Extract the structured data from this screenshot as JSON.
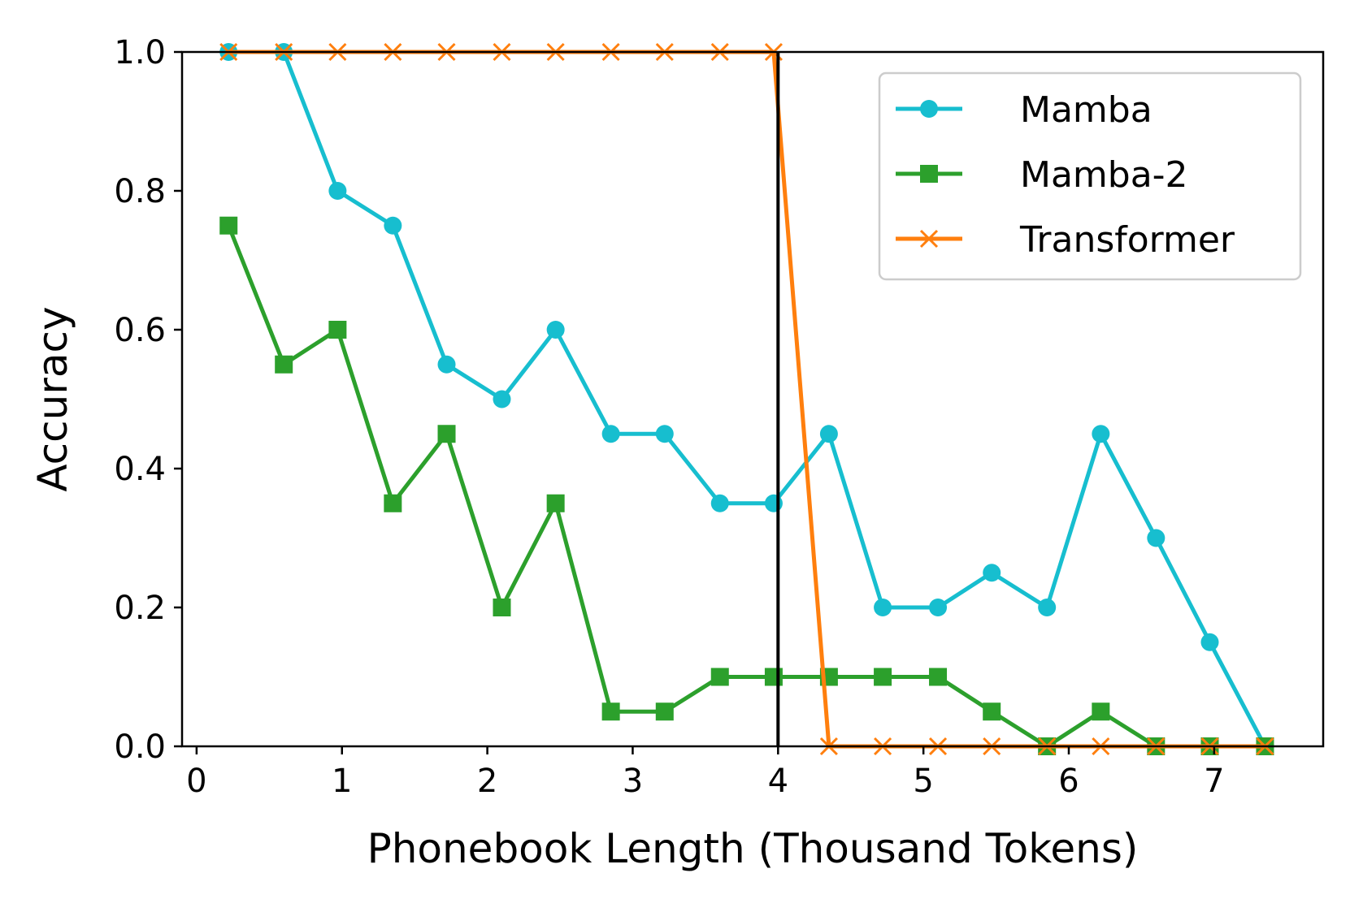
{
  "chart_data": {
    "type": "line",
    "title": "",
    "xlabel": "Phonebook Length (Thousand Tokens)",
    "ylabel": "Accuracy",
    "xlim": [
      -0.1,
      7.75
    ],
    "ylim": [
      0.0,
      1.0
    ],
    "xticks": [
      0,
      1,
      2,
      3,
      4,
      5,
      6,
      7
    ],
    "yticks": [
      "0.0",
      "0.2",
      "0.4",
      "0.6",
      "0.8",
      "1.0"
    ],
    "grid": false,
    "legend_position": "top-right",
    "vline_x": 4.0,
    "x": [
      0.22,
      0.6,
      0.97,
      1.35,
      1.72,
      2.1,
      2.47,
      2.85,
      3.22,
      3.6,
      3.97,
      4.35,
      4.72,
      5.1,
      5.47,
      5.85,
      6.22,
      6.6,
      6.97,
      7.35
    ],
    "series": [
      {
        "name": "Mamba",
        "color": "#17becf",
        "marker": "circle",
        "values": [
          1.0,
          1.0,
          0.8,
          0.75,
          0.55,
          0.5,
          0.6,
          0.45,
          0.45,
          0.35,
          0.35,
          0.45,
          0.2,
          0.2,
          0.25,
          0.2,
          0.45,
          0.3,
          0.15,
          0.0
        ]
      },
      {
        "name": "Mamba-2",
        "color": "#2ca02c",
        "marker": "square",
        "values": [
          0.75,
          0.55,
          0.6,
          0.35,
          0.45,
          0.2,
          0.35,
          0.05,
          0.05,
          0.1,
          0.1,
          0.1,
          0.1,
          0.1,
          0.05,
          0.0,
          0.05,
          0.0,
          0.0,
          0.0
        ]
      },
      {
        "name": "Transformer",
        "color": "#ff7f0e",
        "marker": "x",
        "values": [
          1.0,
          1.0,
          1.0,
          1.0,
          1.0,
          1.0,
          1.0,
          1.0,
          1.0,
          1.0,
          1.0,
          0.0,
          0.0,
          0.0,
          0.0,
          0.0,
          0.0,
          0.0,
          0.0,
          0.0
        ]
      }
    ]
  }
}
